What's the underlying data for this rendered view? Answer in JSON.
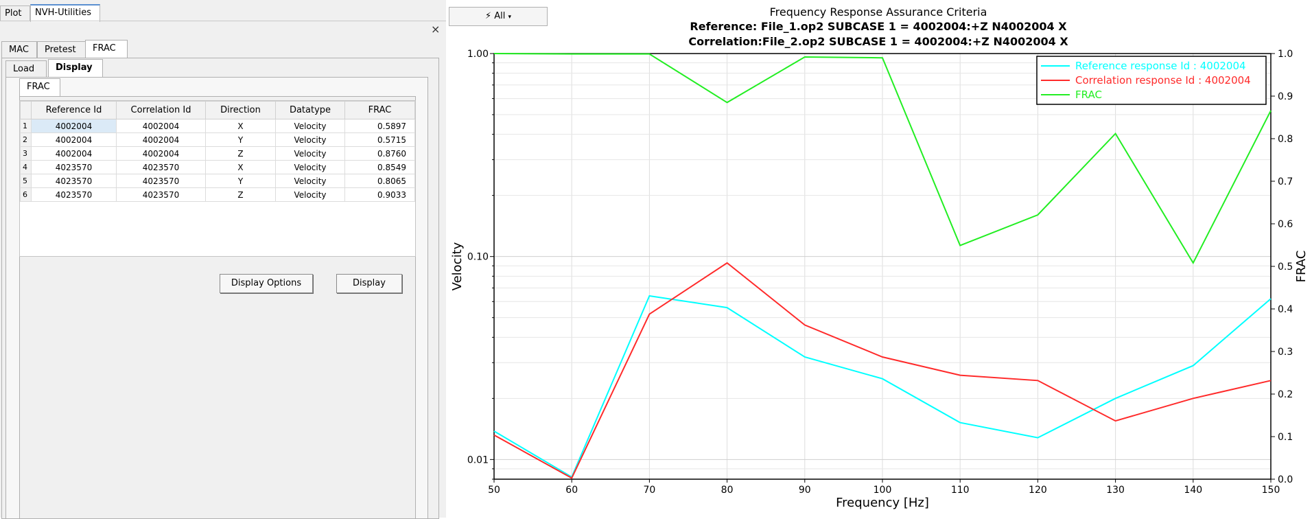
{
  "top_tabs": [
    "Plot",
    "NVH-Utilities"
  ],
  "close_label": "×",
  "main_tabs": [
    "MAC",
    "Pretest",
    "FRAC"
  ],
  "sub_tabs": [
    "Load",
    "Display"
  ],
  "inner_tab": "FRAC",
  "table": {
    "headers": [
      "Reference Id",
      "Correlation Id",
      "Direction",
      "Datatype",
      "FRAC"
    ],
    "rows": [
      {
        "n": "1",
        "ref": "4002004",
        "corr": "4002004",
        "dir": "X",
        "type": "Velocity",
        "frac": "0.5897"
      },
      {
        "n": "2",
        "ref": "4002004",
        "corr": "4002004",
        "dir": "Y",
        "type": "Velocity",
        "frac": "0.5715"
      },
      {
        "n": "3",
        "ref": "4002004",
        "corr": "4002004",
        "dir": "Z",
        "type": "Velocity",
        "frac": "0.8760"
      },
      {
        "n": "4",
        "ref": "4023570",
        "corr": "4023570",
        "dir": "X",
        "type": "Velocity",
        "frac": "0.8549"
      },
      {
        "n": "5",
        "ref": "4023570",
        "corr": "4023570",
        "dir": "Y",
        "type": "Velocity",
        "frac": "0.8065"
      },
      {
        "n": "6",
        "ref": "4023570",
        "corr": "4023570",
        "dir": "Z",
        "type": "Velocity",
        "frac": "0.9033"
      }
    ]
  },
  "buttons": {
    "display_options": "Display Options",
    "display": "Display"
  },
  "toolbar": {
    "all_label": "All",
    "all_icon": "lightning-icon"
  },
  "chart_data": {
    "type": "line",
    "title": "Frequency Response Assurance Criteria",
    "subtitle_1": "Reference: File_1.op2 SUBCASE 1 = 4002004:+Z  N4002004 X",
    "subtitle_2": "Correlation:File_2.op2 SUBCASE 1 = 4002004:+Z  N4002004 X",
    "xlabel": "Frequency [Hz]",
    "ylabel": "Velocity",
    "y2label": "FRAC",
    "x": [
      50,
      60,
      70,
      80,
      90,
      100,
      110,
      120,
      130,
      140,
      150
    ],
    "x_ticks": [
      "50",
      "60",
      "70",
      "80",
      "90",
      "100",
      "110",
      "120",
      "130",
      "140",
      "150"
    ],
    "xlim": [
      50,
      150
    ],
    "ylim": [
      0.008,
      1.0
    ],
    "yscale": "log",
    "y_ticks": [
      {
        "v": 0.01,
        "label": "0.01"
      },
      {
        "v": 0.1,
        "label": "0.10"
      },
      {
        "v": 1.0,
        "label": "1.00"
      }
    ],
    "y2lim": [
      0,
      1.0
    ],
    "y2_ticks": [
      "0.0",
      "0.1",
      "0.2",
      "0.3",
      "0.4",
      "0.5",
      "0.6",
      "0.7",
      "0.8",
      "0.9",
      "1.0"
    ],
    "grid": true,
    "legend_position": "top-right",
    "series": [
      {
        "name": "Reference response Id : 4002004",
        "color": "#00ffff",
        "axis": "left",
        "values": [
          0.0138,
          0.0082,
          0.064,
          0.056,
          0.032,
          0.025,
          0.0152,
          0.0128,
          0.02,
          0.029,
          0.062
        ]
      },
      {
        "name": "Correlation response Id : 4002004",
        "color": "#ff2a2a",
        "axis": "left",
        "values": [
          0.0132,
          0.0081,
          0.052,
          0.093,
          0.046,
          0.032,
          0.026,
          0.0245,
          0.0155,
          0.02,
          0.0245
        ]
      },
      {
        "name": "FRAC",
        "color": "#22ee22",
        "axis": "right",
        "values": [
          1.0,
          0.999,
          0.999,
          0.885,
          0.992,
          0.99,
          0.549,
          0.621,
          0.812,
          0.508,
          0.866
        ]
      }
    ]
  }
}
